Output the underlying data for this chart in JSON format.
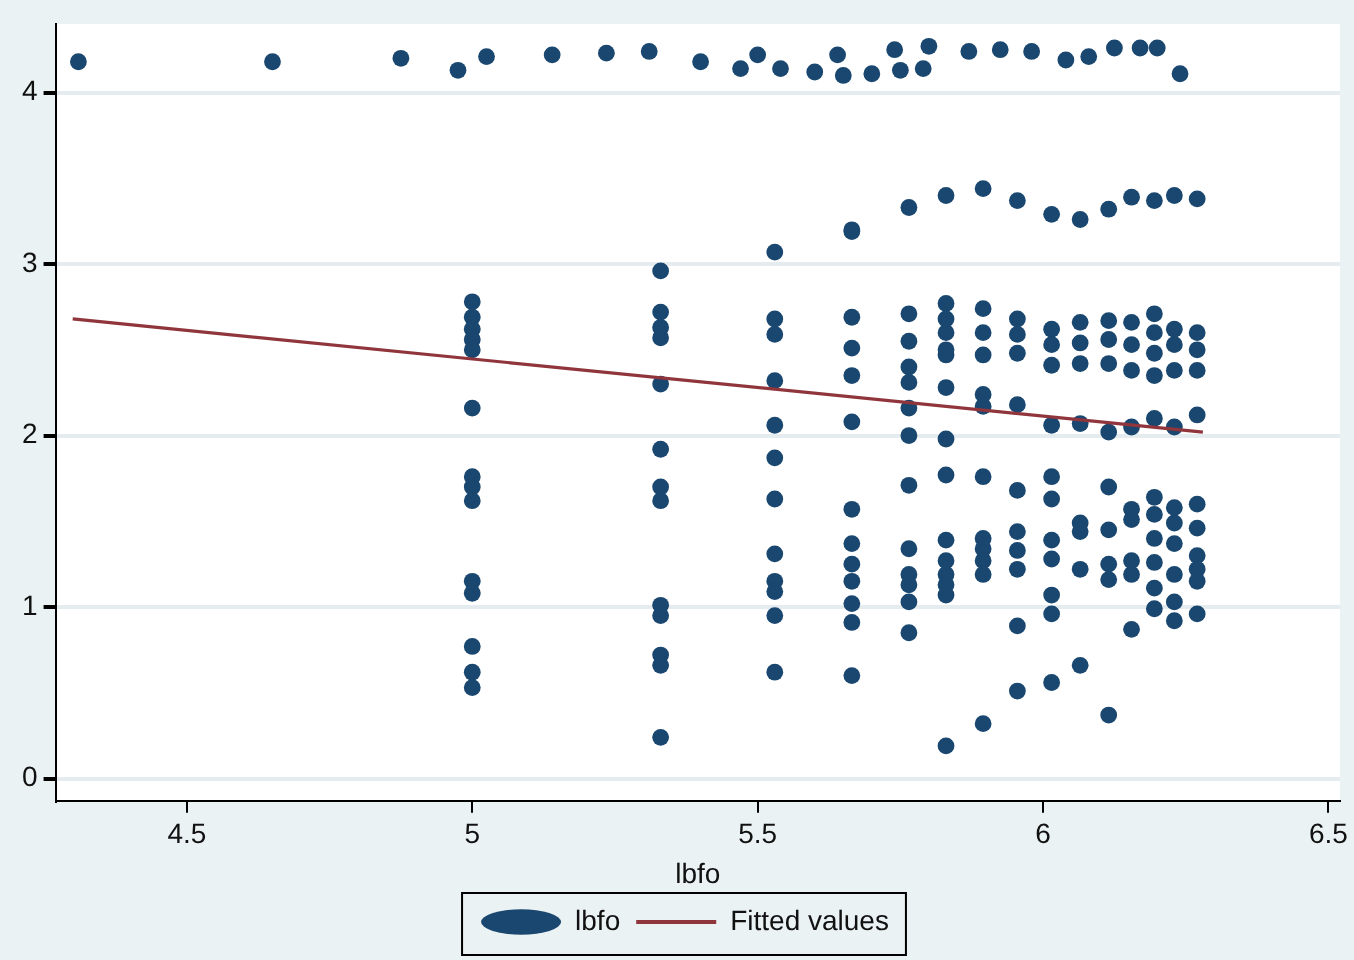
{
  "chart_data": {
    "type": "scatter",
    "xlabel": "lbfo",
    "xlim": [
      4.27,
      6.52
    ],
    "xticks": [
      4.5,
      5,
      5.5,
      6,
      6.5
    ],
    "ylim": [
      -0.13,
      4.4
    ],
    "yticks": [
      0,
      1,
      2,
      3,
      4
    ],
    "grid": "y",
    "legend": "bottom",
    "marker": "circle",
    "series": [
      {
        "name": "lbfo",
        "type": "scatter",
        "color": "#1a476f",
        "x": [
          4.31,
          4.65,
          4.875,
          4.975,
          5.025,
          5.14,
          5.235,
          5.31,
          5.4,
          5.47,
          5.5,
          5.54,
          5.6,
          5.64,
          5.65,
          5.7,
          5.74,
          5.75,
          5.79,
          5.8,
          5.87,
          5.925,
          5.98,
          6.04,
          6.08,
          6.125,
          6.17,
          6.2,
          6.24,
          5.0,
          5.0,
          5.0,
          5.0,
          5.0,
          5.0,
          5.0,
          5.0,
          5.0,
          5.0,
          5.0,
          5.0,
          5.0,
          5.0,
          5.33,
          5.33,
          5.33,
          5.33,
          5.33,
          5.33,
          5.33,
          5.33,
          5.33,
          5.33,
          5.33,
          5.33,
          5.33,
          5.53,
          5.53,
          5.53,
          5.53,
          5.53,
          5.53,
          5.53,
          5.53,
          5.53,
          5.53,
          5.53,
          5.53,
          5.665,
          5.665,
          5.665,
          5.665,
          5.665,
          5.665,
          5.665,
          5.665,
          5.665,
          5.665,
          5.665,
          5.665,
          5.665,
          5.765,
          5.765,
          5.765,
          5.765,
          5.765,
          5.765,
          5.765,
          5.765,
          5.765,
          5.765,
          5.765,
          5.765,
          5.765,
          5.83,
          5.83,
          5.83,
          5.83,
          5.83,
          5.83,
          5.83,
          5.83,
          5.83,
          5.83,
          5.83,
          5.83,
          5.83,
          5.83,
          5.83,
          5.895,
          5.895,
          5.895,
          5.895,
          5.895,
          5.895,
          5.895,
          5.895,
          5.895,
          5.895,
          5.895,
          5.895,
          5.955,
          5.955,
          5.955,
          5.955,
          5.955,
          5.955,
          5.955,
          5.955,
          5.955,
          5.955,
          5.955,
          6.015,
          6.015,
          6.015,
          6.015,
          6.015,
          6.015,
          6.015,
          6.015,
          6.015,
          6.015,
          6.015,
          6.015,
          6.065,
          6.065,
          6.065,
          6.065,
          6.065,
          6.065,
          6.065,
          6.065,
          6.065,
          6.115,
          6.115,
          6.115,
          6.115,
          6.115,
          6.115,
          6.115,
          6.115,
          6.115,
          6.115,
          6.155,
          6.155,
          6.155,
          6.155,
          6.155,
          6.155,
          6.155,
          6.155,
          6.155,
          6.155,
          6.195,
          6.195,
          6.195,
          6.195,
          6.195,
          6.195,
          6.195,
          6.195,
          6.195,
          6.195,
          6.195,
          6.195,
          6.23,
          6.23,
          6.23,
          6.23,
          6.23,
          6.23,
          6.23,
          6.23,
          6.23,
          6.23,
          6.23,
          6.27,
          6.27,
          6.27,
          6.27,
          6.27,
          6.27,
          6.27,
          6.27,
          6.27,
          6.27,
          6.27
        ],
        "values": [
          4.18,
          4.18,
          4.2,
          4.13,
          4.21,
          4.22,
          4.23,
          4.24,
          4.18,
          4.14,
          4.22,
          4.14,
          4.12,
          4.22,
          4.1,
          4.11,
          4.25,
          4.13,
          4.14,
          4.27,
          4.24,
          4.25,
          4.24,
          4.19,
          4.21,
          4.26,
          4.26,
          4.26,
          4.11,
          2.78,
          2.69,
          2.62,
          2.56,
          2.5,
          2.16,
          1.76,
          1.7,
          1.62,
          1.15,
          1.08,
          0.77,
          0.62,
          0.53,
          2.96,
          2.72,
          2.63,
          2.57,
          2.3,
          1.92,
          1.7,
          1.62,
          1.01,
          0.95,
          0.72,
          0.66,
          0.24,
          3.07,
          2.68,
          2.59,
          2.32,
          2.06,
          1.87,
          1.63,
          1.31,
          1.15,
          1.09,
          0.95,
          0.62,
          3.2,
          2.69,
          2.51,
          2.35,
          2.08,
          1.57,
          1.37,
          1.25,
          1.15,
          1.02,
          0.91,
          0.6,
          3.19,
          3.33,
          2.71,
          2.55,
          2.31,
          2.16,
          2.0,
          1.71,
          1.34,
          1.19,
          1.13,
          1.03,
          0.85,
          2.4,
          3.4,
          2.77,
          2.68,
          2.6,
          2.47,
          2.28,
          1.98,
          1.77,
          1.39,
          1.27,
          1.19,
          1.13,
          1.07,
          0.19,
          2.5,
          3.44,
          2.74,
          2.6,
          2.47,
          2.24,
          2.17,
          1.76,
          1.4,
          1.34,
          1.27,
          1.19,
          0.32,
          3.37,
          2.68,
          2.59,
          2.48,
          2.18,
          1.68,
          1.44,
          1.33,
          1.22,
          0.89,
          0.51,
          3.29,
          2.62,
          2.53,
          2.41,
          2.06,
          1.76,
          1.63,
          1.39,
          1.28,
          1.07,
          0.96,
          0.56,
          3.26,
          2.66,
          2.54,
          2.42,
          2.07,
          1.49,
          1.44,
          1.22,
          0.66,
          3.32,
          2.67,
          2.56,
          2.42,
          2.02,
          1.7,
          1.45,
          1.25,
          1.16,
          0.37,
          3.39,
          2.66,
          2.53,
          2.38,
          2.05,
          1.57,
          1.51,
          1.27,
          1.19,
          0.87,
          3.37,
          2.71,
          2.6,
          2.48,
          2.35,
          2.1,
          1.64,
          1.54,
          1.4,
          1.26,
          1.11,
          0.99,
          3.4,
          2.62,
          2.53,
          2.38,
          2.05,
          1.58,
          1.49,
          1.37,
          1.19,
          1.03,
          0.92,
          3.38,
          2.6,
          2.5,
          2.38,
          2.12,
          1.6,
          1.46,
          1.3,
          1.22,
          1.15,
          0.96
        ]
      },
      {
        "name": "Fitted values",
        "type": "line",
        "marker": "none",
        "color": "#90353b",
        "x": [
          4.3,
          6.28
        ],
        "values": [
          2.68,
          2.02
        ]
      }
    ]
  }
}
